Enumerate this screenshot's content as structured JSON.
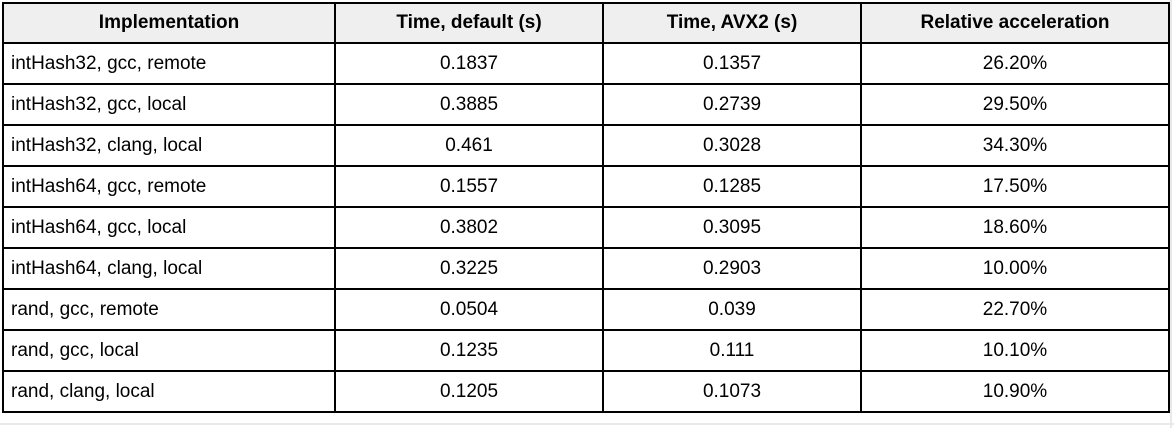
{
  "chart_data": {
    "type": "table",
    "title": "",
    "columns": [
      "Implementation",
      "Time, default (s)",
      "Time, AVX2 (s)",
      "Relative acceleration"
    ],
    "rows": [
      [
        "intHash32, gcc, remote",
        "0.1837",
        "0.1357",
        "26.20%"
      ],
      [
        "intHash32, gcc, local",
        "0.3885",
        "0.2739",
        "29.50%"
      ],
      [
        "intHash32, clang, local",
        "0.461",
        "0.3028",
        "34.30%"
      ],
      [
        "intHash64, gcc, remote",
        "0.1557",
        "0.1285",
        "17.50%"
      ],
      [
        "intHash64, gcc, local",
        "0.3802",
        "0.3095",
        "18.60%"
      ],
      [
        "intHash64, clang, local",
        "0.3225",
        "0.2903",
        "10.00%"
      ],
      [
        "rand, gcc, remote",
        "0.0504",
        "0.039",
        "22.70%"
      ],
      [
        "rand, gcc, local",
        "0.1235",
        "0.111",
        "10.10%"
      ],
      [
        "rand, clang, local",
        "0.1205",
        "0.1073",
        "10.90%"
      ]
    ]
  },
  "table": {
    "headers": {
      "implementation": "Implementation",
      "time_default": "Time, default (s)",
      "time_avx2": "Time, AVX2 (s)",
      "relative_acceleration": "Relative acceleration"
    },
    "colors": {
      "header_bg": "#efefef",
      "border": "#000000",
      "cell_bg": "#ffffff",
      "text": "#000000"
    }
  }
}
